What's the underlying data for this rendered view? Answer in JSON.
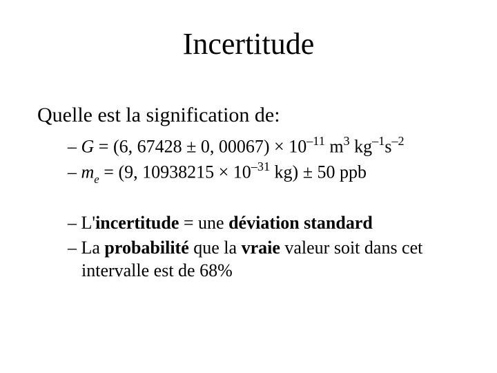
{
  "slide": {
    "title": "Incertitude",
    "lead": "Quelle est la signification de:",
    "bullets_group1": {
      "b1": {
        "dash": "– ",
        "var": "G",
        "eq": " = (6, 67428 ± 0, 00067) × 10",
        "exp1": "–11",
        "unit_m": " m",
        "exp_m": "3",
        "unit_kg": " kg",
        "exp_kg": "–1",
        "unit_s": "s",
        "exp_s": "–2"
      },
      "b2": {
        "dash": "– ",
        "var": "m",
        "var_sub": "e",
        "eq": " = (9, 10938215 × 10",
        "exp1": "–31",
        "tail": " kg) ± 50 ppb"
      }
    },
    "bullets_group2": {
      "b3": {
        "dash": "– ",
        "t1": "L'",
        "bold1": "incertitude",
        "t2": " = une ",
        "bold2": "déviation standard"
      },
      "b4": {
        "dash": "– ",
        "t1": "La ",
        "bold1": "probabilité",
        "t2": " que la ",
        "bold2": "vraie",
        "t3": " valeur soit dans cet intervalle est de 68%"
      }
    }
  },
  "style": {
    "background_color": "#ffffff",
    "text_color": "#000000",
    "font_family": "Times New Roman",
    "title_fontsize_pt": 33,
    "body_fontsize_pt": 22,
    "sub_fontsize_pt": 20
  }
}
